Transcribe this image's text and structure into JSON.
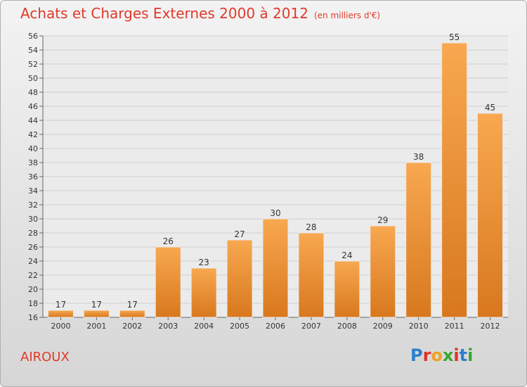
{
  "header": {
    "title": "Achats et Charges Externes 2000 à 2012",
    "unit": "(en milliers d'€)"
  },
  "footer": {
    "commune": "AIROUX",
    "logo": "Proxiti"
  },
  "colors": {
    "title": "#e03a2a",
    "bar_top": "#f8a850",
    "bar_bottom": "#d8781e"
  },
  "chart_data": {
    "type": "bar",
    "title": "Achats et Charges Externes 2000 à 2012",
    "subtitle": "(en milliers d'€)",
    "xlabel": "",
    "ylabel": "",
    "categories": [
      "2000",
      "2001",
      "2002",
      "2003",
      "2004",
      "2005",
      "2006",
      "2007",
      "2008",
      "2009",
      "2010",
      "2011",
      "2012"
    ],
    "values": [
      17,
      17,
      17,
      26,
      23,
      27,
      30,
      28,
      24,
      29,
      38,
      55,
      45
    ],
    "ylim": [
      16,
      56
    ],
    "yticks": [
      16,
      18,
      20,
      22,
      24,
      26,
      28,
      30,
      32,
      34,
      36,
      38,
      40,
      42,
      44,
      46,
      48,
      50,
      52,
      54,
      56
    ],
    "grid": true,
    "data_labels": true
  }
}
